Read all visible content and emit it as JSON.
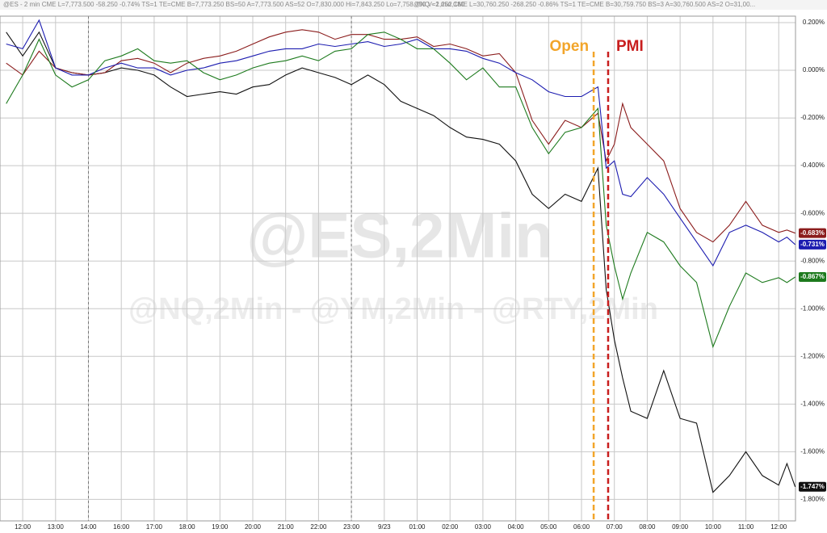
{
  "chart_data": {
    "type": "line",
    "header": [
      "@ES - 2 min  CME  L=7,773.500  -58.250  -0.74%  TS=1  TE=CME  B=7,773.250  BS=50  A=7,773.500  AS=52  O=7,830.000  Hi=7,843.250  Lo=7,758.750  V=1,252,180",
      "@NQ - 2 min  CME  L=30,760.250  -268.250  -0.86%  TS=1  TE=CME  B=30,759.750  BS=3  A=30,760.500  AS=2  O=31,00..."
    ],
    "watermark": "@ES,2Min",
    "watermark_sub": "@NQ,2Min - @YM,2Min - @RTY,2Min",
    "annotations": [
      {
        "text": "Open",
        "x": 17.37,
        "color": "#f2a52a"
      },
      {
        "text": "PMI",
        "x": 17.81,
        "color": "#c81e1e"
      }
    ],
    "session_breaks": [
      2,
      10
    ],
    "x": [
      -0.5,
      0,
      0.5,
      1,
      1.5,
      2,
      2.5,
      3,
      3.5,
      4,
      4.5,
      5,
      5.5,
      6,
      6.5,
      7,
      7.5,
      8,
      8.5,
      9,
      9.5,
      10,
      10.5,
      11,
      11.5,
      12,
      12.5,
      13,
      13.5,
      14,
      14.5,
      15,
      15.5,
      16,
      16.5,
      17,
      17.5,
      17.75,
      18,
      18.25,
      18.5,
      19,
      19.5,
      20,
      20.5,
      21,
      21.5,
      22,
      22.5,
      23,
      23.25,
      23.5
    ],
    "series": [
      {
        "color": "#111111",
        "values": [
          0.16,
          0.06,
          0.16,
          0.01,
          -0.01,
          -0.02,
          -0.01,
          0.01,
          0,
          -0.02,
          -0.07,
          -0.11,
          -0.1,
          -0.09,
          -0.1,
          -0.07,
          -0.06,
          -0.02,
          0.01,
          -0.01,
          -0.03,
          -0.06,
          -0.02,
          -0.06,
          -0.13,
          -0.16,
          -0.19,
          -0.24,
          -0.28,
          -0.29,
          -0.31,
          -0.38,
          -0.52,
          -0.58,
          -0.52,
          -0.55,
          -0.41,
          -0.92,
          -1.13,
          -1.29,
          -1.43,
          -1.46,
          -1.26,
          -1.46,
          -1.48,
          -1.77,
          -1.7,
          -1.6,
          -1.7,
          -1.74,
          -1.65,
          -1.747
        ],
        "value_labels": [
          null,
          null,
          null,
          null,
          null,
          null,
          null,
          null,
          null,
          null,
          null,
          null,
          null,
          null,
          null,
          null,
          null,
          null,
          null,
          null,
          null,
          null,
          null,
          null,
          null,
          null,
          null,
          null,
          null,
          null,
          null,
          null,
          null,
          null,
          null,
          null,
          null,
          null,
          null,
          null,
          null,
          null,
          null,
          null,
          null,
          null,
          null,
          null,
          null,
          null,
          null,
          "-1.747%"
        ]
      },
      {
        "color": "#8b1c1c",
        "values": [
          0.03,
          -0.02,
          0.08,
          0.01,
          -0.01,
          -0.02,
          -0.01,
          0.04,
          0.05,
          0.03,
          -0.01,
          0.03,
          0.05,
          0.06,
          0.08,
          0.11,
          0.14,
          0.16,
          0.17,
          0.16,
          0.13,
          0.15,
          0.15,
          0.13,
          0.13,
          0.14,
          0.1,
          0.11,
          0.09,
          0.06,
          0.07,
          -0.01,
          -0.21,
          -0.31,
          -0.21,
          -0.24,
          -0.18,
          -0.38,
          -0.31,
          -0.14,
          -0.24,
          -0.31,
          -0.38,
          -0.58,
          -0.68,
          -0.72,
          -0.65,
          -0.55,
          -0.65,
          -0.68,
          -0.67,
          -0.683
        ],
        "value_labels": [
          null,
          null,
          null,
          null,
          null,
          null,
          null,
          null,
          null,
          null,
          null,
          null,
          null,
          null,
          null,
          null,
          null,
          null,
          null,
          null,
          null,
          null,
          null,
          null,
          null,
          null,
          null,
          null,
          null,
          null,
          null,
          null,
          null,
          null,
          null,
          null,
          null,
          null,
          null,
          null,
          null,
          null,
          null,
          null,
          null,
          null,
          null,
          null,
          null,
          null,
          null,
          "-0.683%"
        ]
      },
      {
        "color": "#1c1cb0",
        "values": [
          0.11,
          0.09,
          0.21,
          0.01,
          -0.02,
          -0.02,
          0.01,
          0.03,
          0.01,
          0.01,
          -0.02,
          0,
          0.01,
          0.03,
          0.04,
          0.06,
          0.08,
          0.09,
          0.09,
          0.11,
          0.1,
          0.11,
          0.12,
          0.1,
          0.11,
          0.13,
          0.09,
          0.09,
          0.08,
          0.05,
          0.03,
          -0.01,
          -0.04,
          -0.09,
          -0.11,
          -0.11,
          -0.07,
          -0.41,
          -0.38,
          -0.52,
          -0.53,
          -0.45,
          -0.52,
          -0.62,
          -0.72,
          -0.82,
          -0.68,
          -0.65,
          -0.68,
          -0.72,
          -0.7,
          -0.731
        ],
        "value_labels": [
          null,
          null,
          null,
          null,
          null,
          null,
          null,
          null,
          null,
          null,
          null,
          null,
          null,
          null,
          null,
          null,
          null,
          null,
          null,
          null,
          null,
          null,
          null,
          null,
          null,
          null,
          null,
          null,
          null,
          null,
          null,
          null,
          null,
          null,
          null,
          null,
          null,
          null,
          null,
          null,
          null,
          null,
          null,
          null,
          null,
          null,
          null,
          null,
          null,
          null,
          null,
          "-0.731%"
        ]
      },
      {
        "color": "#1d7a1d",
        "values": [
          -0.14,
          -0.02,
          0.13,
          -0.02,
          -0.07,
          -0.04,
          0.04,
          0.06,
          0.09,
          0.04,
          0.03,
          0.04,
          -0.01,
          -0.04,
          -0.02,
          0.01,
          0.03,
          0.04,
          0.06,
          0.04,
          0.08,
          0.09,
          0.15,
          0.16,
          0.13,
          0.09,
          0.09,
          0.03,
          -0.04,
          0.01,
          -0.07,
          -0.07,
          -0.24,
          -0.35,
          -0.26,
          -0.24,
          -0.16,
          -0.65,
          -0.82,
          -0.96,
          -0.85,
          -0.68,
          -0.72,
          -0.82,
          -0.89,
          -1.16,
          -0.99,
          -0.85,
          -0.89,
          -0.87,
          -0.89,
          -0.867
        ],
        "value_labels": [
          null,
          null,
          null,
          null,
          null,
          null,
          null,
          null,
          null,
          null,
          null,
          null,
          null,
          null,
          null,
          null,
          null,
          null,
          null,
          null,
          null,
          null,
          null,
          null,
          null,
          null,
          null,
          null,
          null,
          null,
          null,
          null,
          null,
          null,
          null,
          null,
          null,
          null,
          null,
          null,
          null,
          null,
          null,
          null,
          null,
          null,
          null,
          null,
          null,
          null,
          null,
          "-0.867%"
        ]
      }
    ],
    "xlim": [
      -0.69,
      23.51
    ],
    "ylim": [
      -1.89,
      0.227
    ],
    "xticks": [
      {
        "value": 0,
        "label": "12:00"
      },
      {
        "value": 1,
        "label": "13:00"
      },
      {
        "value": 2,
        "label": "14:00"
      },
      {
        "value": 3,
        "label": "16:00"
      },
      {
        "value": 4,
        "label": "17:00"
      },
      {
        "value": 5,
        "label": "18:00"
      },
      {
        "value": 6,
        "label": "19:00"
      },
      {
        "value": 7,
        "label": "20:00"
      },
      {
        "value": 8,
        "label": "21:00"
      },
      {
        "value": 9,
        "label": "22:00"
      },
      {
        "value": 10,
        "label": "23:00"
      },
      {
        "value": 11,
        "label": "9/23"
      },
      {
        "value": 12,
        "label": "01:00"
      },
      {
        "value": 13,
        "label": "02:00"
      },
      {
        "value": 14,
        "label": "03:00"
      },
      {
        "value": 15,
        "label": "04:00"
      },
      {
        "value": 16,
        "label": "05:00"
      },
      {
        "value": 17,
        "label": "06:00"
      },
      {
        "value": 18,
        "label": "07:00"
      },
      {
        "value": 19,
        "label": "08:00"
      },
      {
        "value": 20,
        "label": "09:00"
      },
      {
        "value": 21,
        "label": "10:00"
      },
      {
        "value": 22,
        "label": "11:00"
      },
      {
        "value": 23,
        "label": "12:00"
      }
    ],
    "yticks": [
      {
        "value": 0.2,
        "label": "0.200%"
      },
      {
        "value": 0,
        "label": "0.000%"
      },
      {
        "value": -0.2,
        "label": "-0.200%"
      },
      {
        "value": -0.4,
        "label": "-0.400%"
      },
      {
        "value": -0.6,
        "label": "-0.600%"
      },
      {
        "value": -0.8,
        "label": "-0.800%"
      },
      {
        "value": -1,
        "label": "-1.000%"
      },
      {
        "value": -1.2,
        "label": "-1.200%"
      },
      {
        "value": -1.4,
        "label": "-1.400%"
      },
      {
        "value": -1.6,
        "label": "-1.600%"
      },
      {
        "value": -1.8,
        "label": "-1.800%"
      }
    ],
    "grid": true
  }
}
